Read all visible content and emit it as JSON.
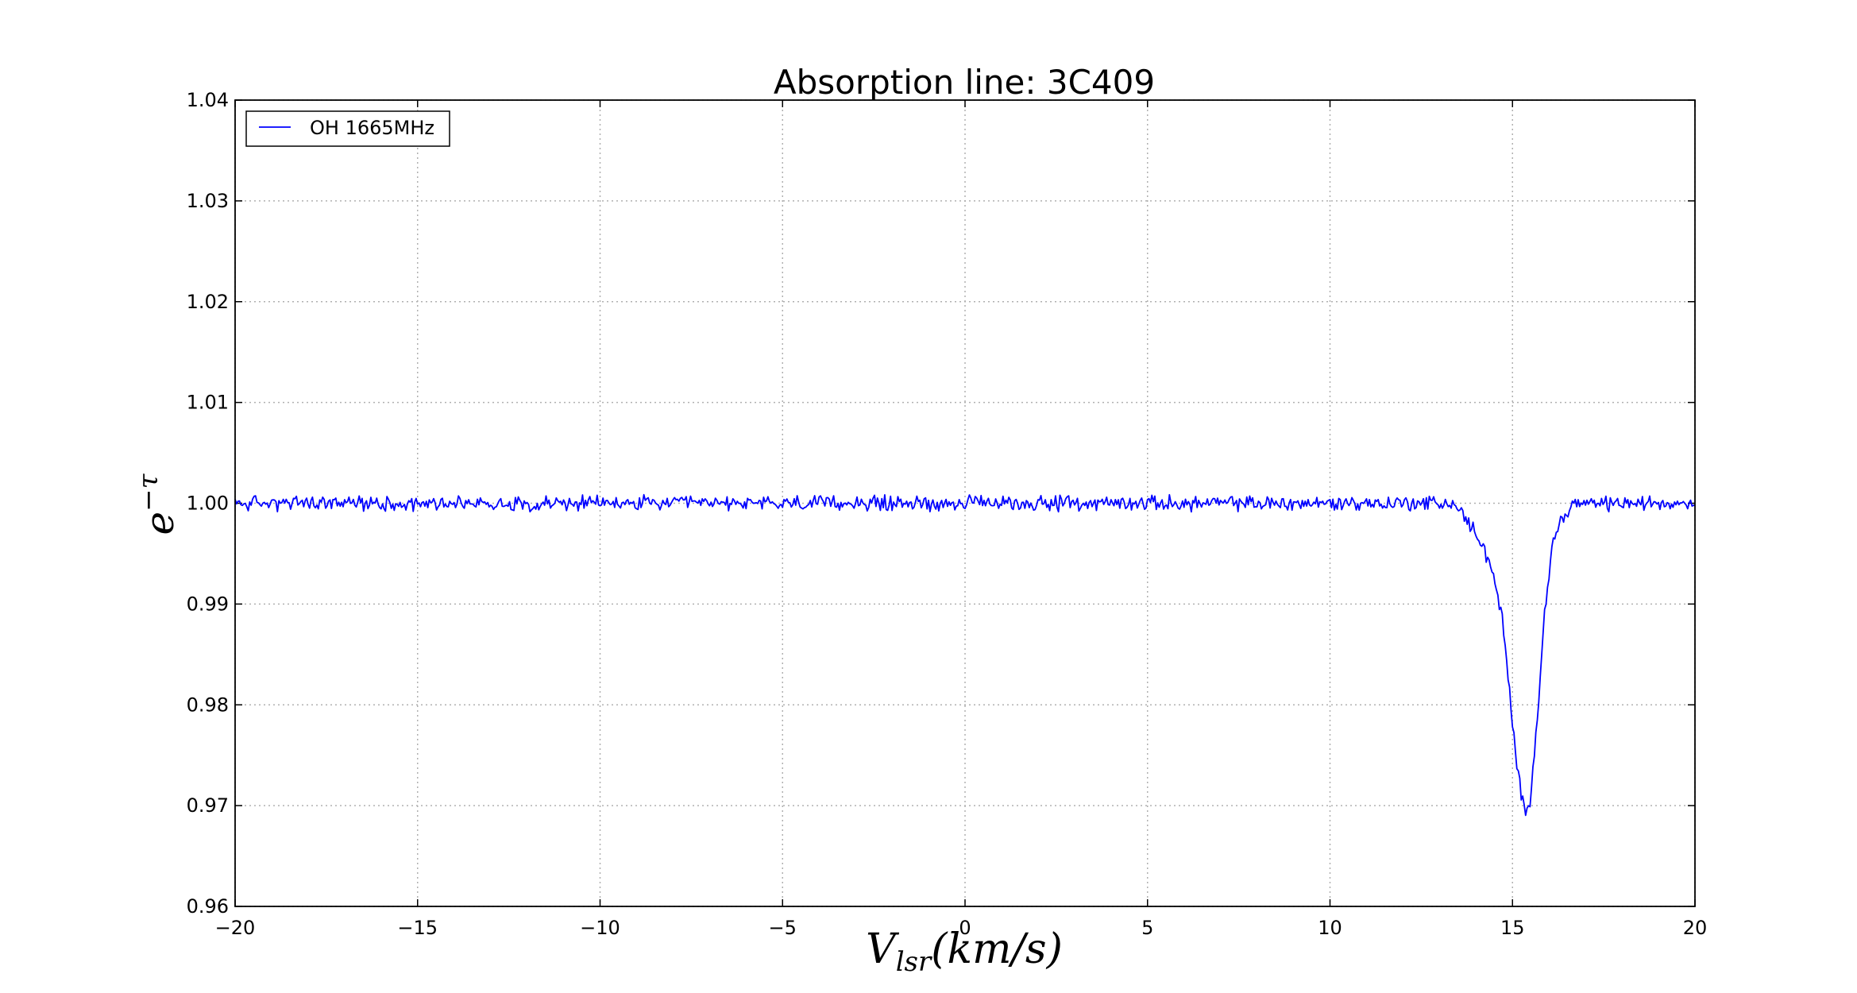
{
  "chart_data": {
    "type": "line",
    "title": "Absorption line: 3C409",
    "xlabel": {
      "base": "V",
      "subscript": "lsr",
      "rest": "(km/s)"
    },
    "ylabel": {
      "base": "e",
      "superscript": "−τ"
    },
    "xlim": [
      -20,
      20
    ],
    "ylim": [
      0.96,
      1.04
    ],
    "xticks": [
      -20,
      -15,
      -10,
      -5,
      0,
      5,
      10,
      15,
      20
    ],
    "xtick_labels": [
      "−20",
      "−15",
      "−10",
      "−5",
      "0",
      "5",
      "10",
      "15",
      "20"
    ],
    "yticks": [
      0.96,
      0.97,
      0.98,
      0.99,
      1.0,
      1.01,
      1.02,
      1.03,
      1.04
    ],
    "ytick_labels": [
      "0.96",
      "0.97",
      "0.98",
      "0.99",
      "1.00",
      "1.01",
      "1.02",
      "1.03",
      "1.04"
    ],
    "grid": true,
    "legend": {
      "placement": "top-left",
      "entries": [
        "OH 1665MHz"
      ]
    },
    "series": [
      {
        "name": "OH 1665MHz",
        "color": "#0000ff",
        "baseline": 1.0,
        "noise_amplitude": 0.0007,
        "x_step": 0.04,
        "shape_points": [
          [
            -20,
            1.0
          ],
          [
            13.4,
            1.0
          ],
          [
            13.6,
            0.999
          ],
          [
            14.0,
            0.997
          ],
          [
            14.4,
            0.994
          ],
          [
            14.7,
            0.989
          ],
          [
            14.9,
            0.982
          ],
          [
            15.0,
            0.978
          ],
          [
            15.15,
            0.973
          ],
          [
            15.35,
            0.969
          ],
          [
            15.5,
            0.971
          ],
          [
            15.7,
            0.98
          ],
          [
            15.9,
            0.99
          ],
          [
            16.1,
            0.996
          ],
          [
            16.4,
            0.999
          ],
          [
            16.8,
            1.0
          ],
          [
            20,
            1.0
          ]
        ]
      }
    ]
  }
}
